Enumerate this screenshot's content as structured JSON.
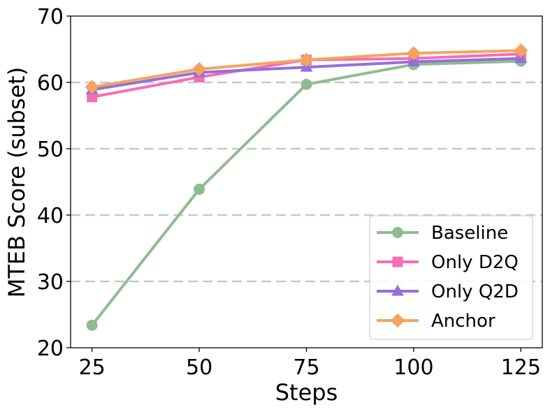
{
  "chart_data": {
    "type": "line",
    "title": "",
    "xlabel": "Steps",
    "ylabel": "MTEB Score (subset)",
    "x": [
      25,
      50,
      75,
      100,
      125
    ],
    "x_tick_labels": [
      "25",
      "50",
      "75",
      "100",
      "125"
    ],
    "xlim": [
      20,
      130
    ],
    "ylim": [
      20,
      70
    ],
    "y_ticks": [
      20,
      30,
      40,
      50,
      60,
      70
    ],
    "y_tick_labels": [
      "20",
      "30",
      "40",
      "50",
      "60",
      "70"
    ],
    "grid": {
      "axis": "y",
      "style": "dashed",
      "color": "#c8c8c8"
    },
    "legend_position": "bottom-right",
    "series": [
      {
        "name": "Baseline",
        "values": [
          23.4,
          43.9,
          59.7,
          62.7,
          63.2
        ],
        "color": "#8fbc8f",
        "marker": "circle"
      },
      {
        "name": "Only D2Q",
        "values": [
          57.8,
          60.8,
          63.4,
          63.6,
          64.3
        ],
        "color": "#f46eb4",
        "marker": "square"
      },
      {
        "name": "Only Q2D",
        "values": [
          58.9,
          61.5,
          62.3,
          63.1,
          63.6
        ],
        "color": "#9370db",
        "marker": "triangle"
      },
      {
        "name": "Anchor",
        "values": [
          59.3,
          62.0,
          63.4,
          64.4,
          64.8
        ],
        "color": "#f4a460",
        "marker": "diamond"
      }
    ]
  }
}
